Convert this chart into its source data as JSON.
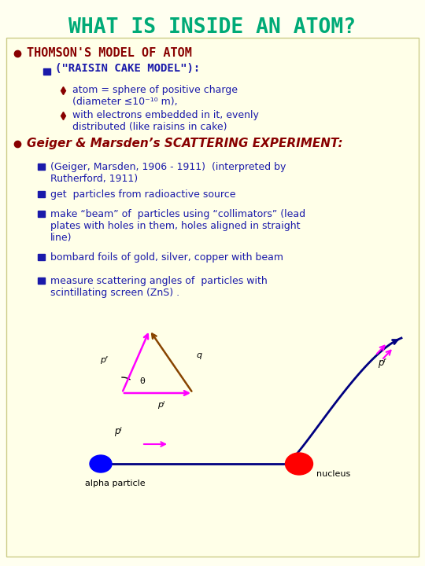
{
  "title": "WHAT IS INSIDE AN ATOM?",
  "title_color": "#00AA77",
  "bg_color": "#FFFFF0",
  "box_color": "#FFFFC8",
  "text_dark_blue": "#1a1aaa",
  "text_maroon": "#880000",
  "figsize": [
    5.4,
    7.2
  ],
  "dpi": 100,
  "bullet1": "THOMSON'S MODEL OF ATOM",
  "sub1": "(\"RAISIN CAKE MODEL\"):",
  "diamond1": "atom = sphere of positive charge\n(diameter ≤10⁻¹⁰ m),",
  "diamond2": " with electrons embedded in it, evenly\n distributed (like raisins in cake)",
  "bullet2": "Geiger & Marsden’s SCATTERING EXPERIMENT:",
  "geiger_items": [
    "(Geiger, Marsden, 1906 - 1911)  (interpreted by\nRutherford, 1911)",
    "get  particles from radioactive source",
    "make “beam” of  particles using “collimators” (lead\nplates with holes in them, holes aligned in straight\nline)",
    "bombard foils of gold, silver, copper with beam",
    "measure scattering angles of  particles with\nscintillating screen (ZnS) ."
  ]
}
